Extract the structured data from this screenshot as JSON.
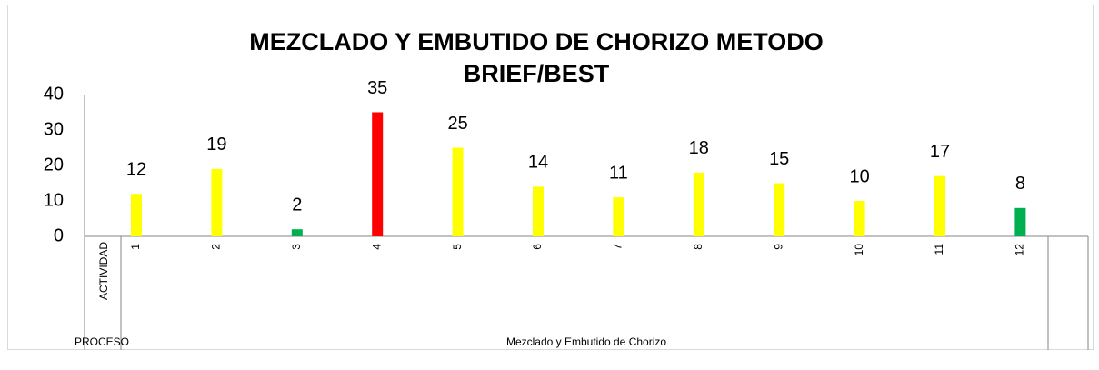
{
  "chart_data": {
    "type": "bar",
    "title": [
      "MEZCLADO Y EMBUTIDO DE CHORIZO METODO",
      "BRIEF/BEST"
    ],
    "categories": [
      "ACTIVIDAD",
      "1",
      "2",
      "3",
      "4",
      "5",
      "6",
      "7",
      "8",
      "9",
      "10",
      "11",
      "12"
    ],
    "values": [
      null,
      12,
      19,
      2,
      35,
      25,
      14,
      11,
      18,
      15,
      10,
      17,
      8
    ],
    "colors": [
      null,
      "#ffff00",
      "#ffff00",
      "#00b050",
      "#ff0000",
      "#ffff00",
      "#ffff00",
      "#ffff00",
      "#ffff00",
      "#ffff00",
      "#ffff00",
      "#ffff00",
      "#00b050"
    ],
    "groups": [
      "PROCESO",
      "Mezclado y Embutido de Chorizo"
    ],
    "ylim": [
      0,
      40
    ],
    "yticks": [
      0,
      10,
      20,
      30,
      40
    ],
    "grid": false
  }
}
